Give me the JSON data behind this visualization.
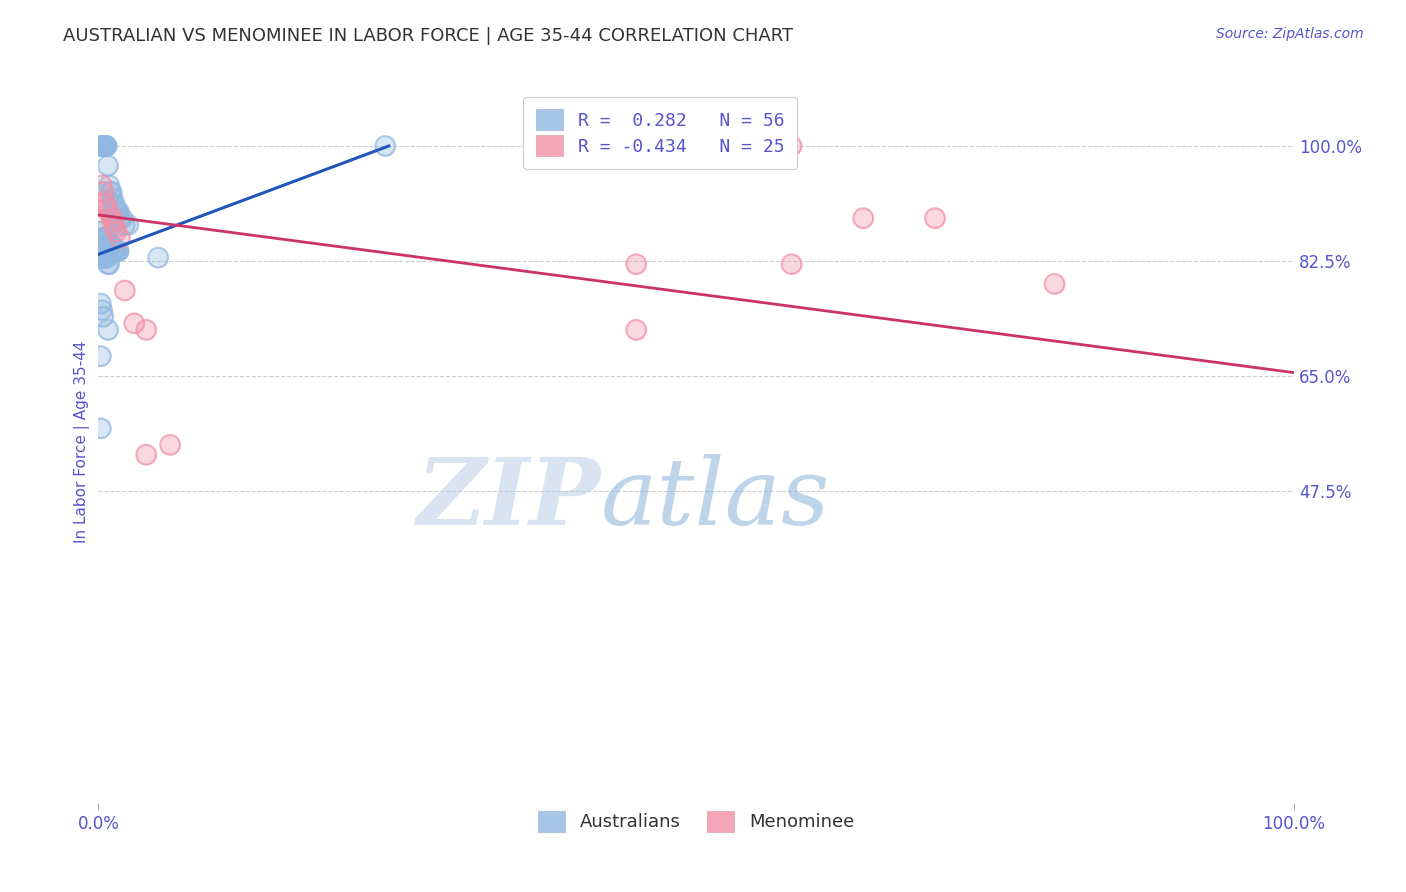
{
  "title": "AUSTRALIAN VS MENOMINEE IN LABOR FORCE | AGE 35-44 CORRELATION CHART",
  "source": "Source: ZipAtlas.com",
  "ylabel": "In Labor Force | Age 35-44",
  "xlim": [
    0.0,
    1.0
  ],
  "ylim": [
    0.0,
    1.1
  ],
  "x_tick_labels": [
    "0.0%",
    "100.0%"
  ],
  "x_tick_positions": [
    0.0,
    1.0
  ],
  "y_tick_labels": [
    "100.0%",
    "82.5%",
    "65.0%",
    "47.5%"
  ],
  "y_tick_positions": [
    1.0,
    0.825,
    0.65,
    0.475
  ],
  "watermark_zip": "ZIP",
  "watermark_atlas": "atlas",
  "legend_label_blue": "R =  0.282   N = 56",
  "legend_label_pink": "R = -0.434   N = 25",
  "australians_x": [
    0.002,
    0.003,
    0.003,
    0.004,
    0.004,
    0.005,
    0.005,
    0.006,
    0.006,
    0.007,
    0.008,
    0.009,
    0.01,
    0.011,
    0.012,
    0.013,
    0.014,
    0.015,
    0.016,
    0.017,
    0.018,
    0.02,
    0.022,
    0.025,
    0.002,
    0.003,
    0.004,
    0.005,
    0.006,
    0.007,
    0.008,
    0.009,
    0.01,
    0.011,
    0.012,
    0.013,
    0.014,
    0.015,
    0.016,
    0.017,
    0.002,
    0.003,
    0.004,
    0.005,
    0.006,
    0.007,
    0.008,
    0.009,
    0.002,
    0.003,
    0.004,
    0.008,
    0.05,
    0.002,
    0.002,
    0.24
  ],
  "australians_y": [
    1.0,
    1.0,
    1.0,
    1.0,
    1.0,
    1.0,
    1.0,
    1.0,
    1.0,
    1.0,
    0.97,
    0.94,
    0.93,
    0.93,
    0.92,
    0.91,
    0.91,
    0.9,
    0.9,
    0.9,
    0.89,
    0.89,
    0.88,
    0.88,
    0.87,
    0.87,
    0.86,
    0.86,
    0.86,
    0.86,
    0.85,
    0.85,
    0.85,
    0.85,
    0.84,
    0.84,
    0.84,
    0.84,
    0.84,
    0.84,
    0.83,
    0.83,
    0.83,
    0.83,
    0.83,
    0.83,
    0.82,
    0.82,
    0.76,
    0.75,
    0.74,
    0.72,
    0.83,
    0.68,
    0.57,
    1.0
  ],
  "menominee_x": [
    0.003,
    0.004,
    0.005,
    0.006,
    0.007,
    0.008,
    0.01,
    0.011,
    0.012,
    0.013,
    0.014,
    0.015,
    0.018,
    0.022,
    0.03,
    0.58,
    0.64,
    0.7,
    0.58,
    0.45,
    0.8,
    0.45,
    0.04,
    0.04,
    0.06
  ],
  "menominee_y": [
    0.94,
    0.93,
    0.915,
    0.91,
    0.905,
    0.9,
    0.895,
    0.89,
    0.885,
    0.88,
    0.875,
    0.87,
    0.86,
    0.78,
    0.73,
    1.0,
    0.89,
    0.89,
    0.82,
    0.82,
    0.79,
    0.72,
    0.72,
    0.53,
    0.545
  ],
  "blue_line_x": [
    0.0,
    0.243
  ],
  "blue_line_y": [
    0.835,
    1.0
  ],
  "pink_line_x": [
    0.0,
    1.0
  ],
  "pink_line_y": [
    0.895,
    0.655
  ],
  "scatter_color_blue": "#90b8e0",
  "scatter_color_pink": "#f090a8",
  "line_color_blue": "#2255bb",
  "line_color_pink": "#cc3366",
  "background_color": "#ffffff",
  "grid_color": "#cccccc",
  "title_color": "#333333",
  "axis_label_color": "#5555cc",
  "tick_color": "#5555cc",
  "legend_text_color": "#5555cc"
}
